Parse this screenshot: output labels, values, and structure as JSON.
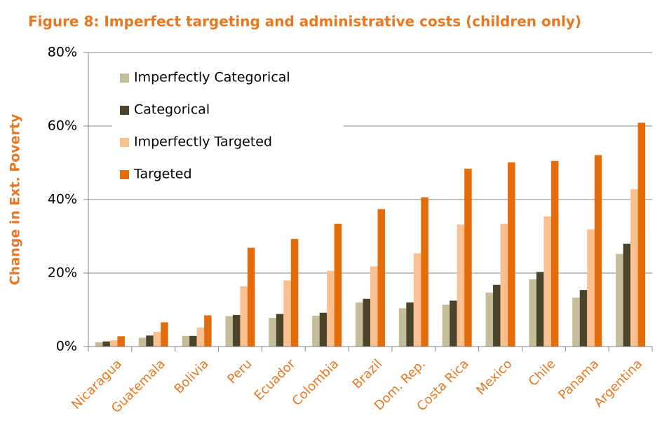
{
  "chart_data": {
    "type": "bar",
    "title": "Figure 8: Imperfect targeting and administrative costs (children only)",
    "y_label": "Change in Ext. Poverty",
    "categories": [
      "Nicaragua",
      "Guatemala",
      "Bolivia",
      "Peru",
      "Ecuador",
      "Colombia",
      "Brazil",
      "Dom. Rep.",
      "Costa Rica",
      "Mexico",
      "Chile",
      "Panama",
      "Argentina"
    ],
    "series": [
      {
        "name": "Imperfectly Categorical",
        "color": "#c4bd97",
        "values": [
          1.2,
          2.4,
          2.9,
          8.3,
          7.8,
          8.4,
          12,
          10.4,
          11.4,
          14.7,
          18.3,
          13.3,
          25.2
        ]
      },
      {
        "name": "Categorical",
        "color": "#4a452a",
        "values": [
          1.4,
          3,
          2.9,
          8.6,
          8.9,
          9.2,
          13,
          12,
          12.5,
          16.8,
          20.3,
          15.4,
          28
        ]
      },
      {
        "name": "Imperfectly Targeted",
        "color": "#fac090",
        "values": [
          1.7,
          4,
          5.2,
          16.4,
          18,
          20.6,
          21.8,
          25.4,
          33.2,
          33.4,
          35.4,
          31.9,
          42.8
        ]
      },
      {
        "name": "Targeted",
        "color": "#e46c0a",
        "values": [
          2.8,
          6.6,
          8.5,
          26.9,
          29.3,
          33.4,
          37.4,
          40.6,
          48.4,
          50.1,
          50.5,
          52.1,
          60.9
        ]
      }
    ],
    "ylim": [
      0,
      80
    ],
    "yticks": [
      {
        "value": 0,
        "label": "0%"
      },
      {
        "value": 20,
        "label": "20%"
      },
      {
        "value": 40,
        "label": "40%"
      },
      {
        "value": 60,
        "label": "60%"
      },
      {
        "value": 80,
        "label": "80%"
      }
    ],
    "grid": true,
    "legend": "top-left"
  }
}
